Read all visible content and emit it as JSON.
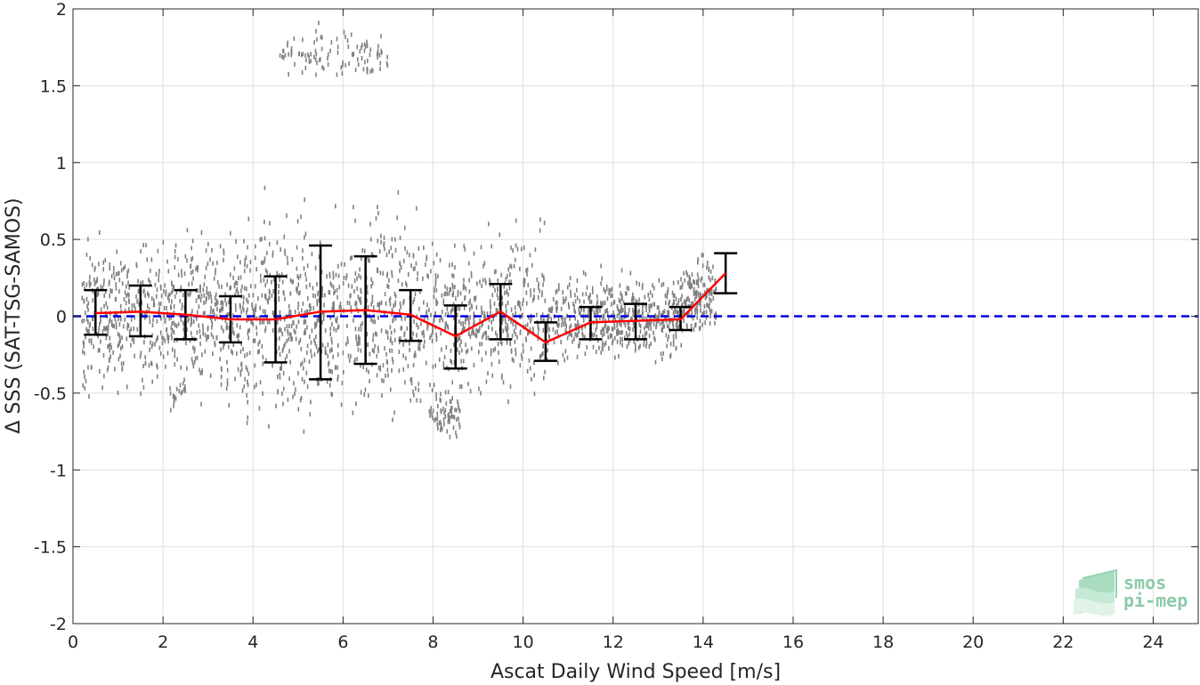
{
  "chart_data": {
    "type": "scatter",
    "title": "",
    "xlabel": "Ascat Daily Wind Speed [m/s]",
    "ylabel": "Δ SSS (SAT-TSG-SAMOS)",
    "xlim": [
      0,
      25
    ],
    "ylim": [
      -2,
      2
    ],
    "x_ticks": [
      0,
      2,
      4,
      6,
      8,
      10,
      12,
      14,
      16,
      18,
      20,
      22,
      24
    ],
    "y_ticks": [
      -2,
      -1.5,
      -1,
      -0.5,
      0,
      0.5,
      1,
      1.5,
      2
    ],
    "grid": true,
    "reference_line": {
      "y": 0,
      "style": "dashed",
      "color": "#0000dd"
    },
    "binned_mean": {
      "color": "#ff0000",
      "x": [
        0.5,
        1.5,
        2.5,
        3.5,
        4.5,
        5.5,
        6.5,
        7.5,
        8.5,
        9.5,
        10.5,
        11.5,
        12.5,
        13.5,
        14.5
      ],
      "y": [
        0.02,
        0.03,
        0.01,
        -0.02,
        -0.02,
        0.03,
        0.04,
        0.01,
        -0.13,
        0.03,
        -0.17,
        -0.04,
        -0.03,
        -0.02,
        0.28
      ]
    },
    "error_bars": {
      "color": "#000000",
      "x": [
        0.5,
        1.5,
        2.5,
        3.5,
        4.5,
        5.5,
        6.5,
        7.5,
        8.5,
        9.5,
        10.5,
        11.5,
        12.5,
        13.5,
        14.5
      ],
      "lower": [
        -0.12,
        -0.13,
        -0.15,
        -0.17,
        -0.3,
        -0.41,
        -0.31,
        -0.16,
        -0.34,
        -0.15,
        -0.29,
        -0.15,
        -0.15,
        -0.09,
        0.15
      ],
      "upper": [
        0.17,
        0.2,
        0.17,
        0.13,
        0.26,
        0.46,
        0.39,
        0.17,
        0.07,
        0.21,
        -0.04,
        0.06,
        0.08,
        0.06,
        0.41
      ]
    },
    "scatter": {
      "color": "#808080",
      "clusters": [
        {
          "x_range": [
            0.2,
            14.3
          ],
          "y_center": 0.0,
          "y_spread": 0.22
        },
        {
          "x_range": [
            4.6,
            7.0
          ],
          "y_center": 1.7,
          "y_spread": 0.07
        },
        {
          "x_range": [
            7.9,
            8.6
          ],
          "y_center": -0.62,
          "y_spread": 0.07
        },
        {
          "x_range": [
            2.1,
            2.5
          ],
          "y_center": -0.52,
          "y_spread": 0.04
        }
      ]
    }
  },
  "logo": {
    "line1": "smos",
    "line2": "pi-mep"
  }
}
